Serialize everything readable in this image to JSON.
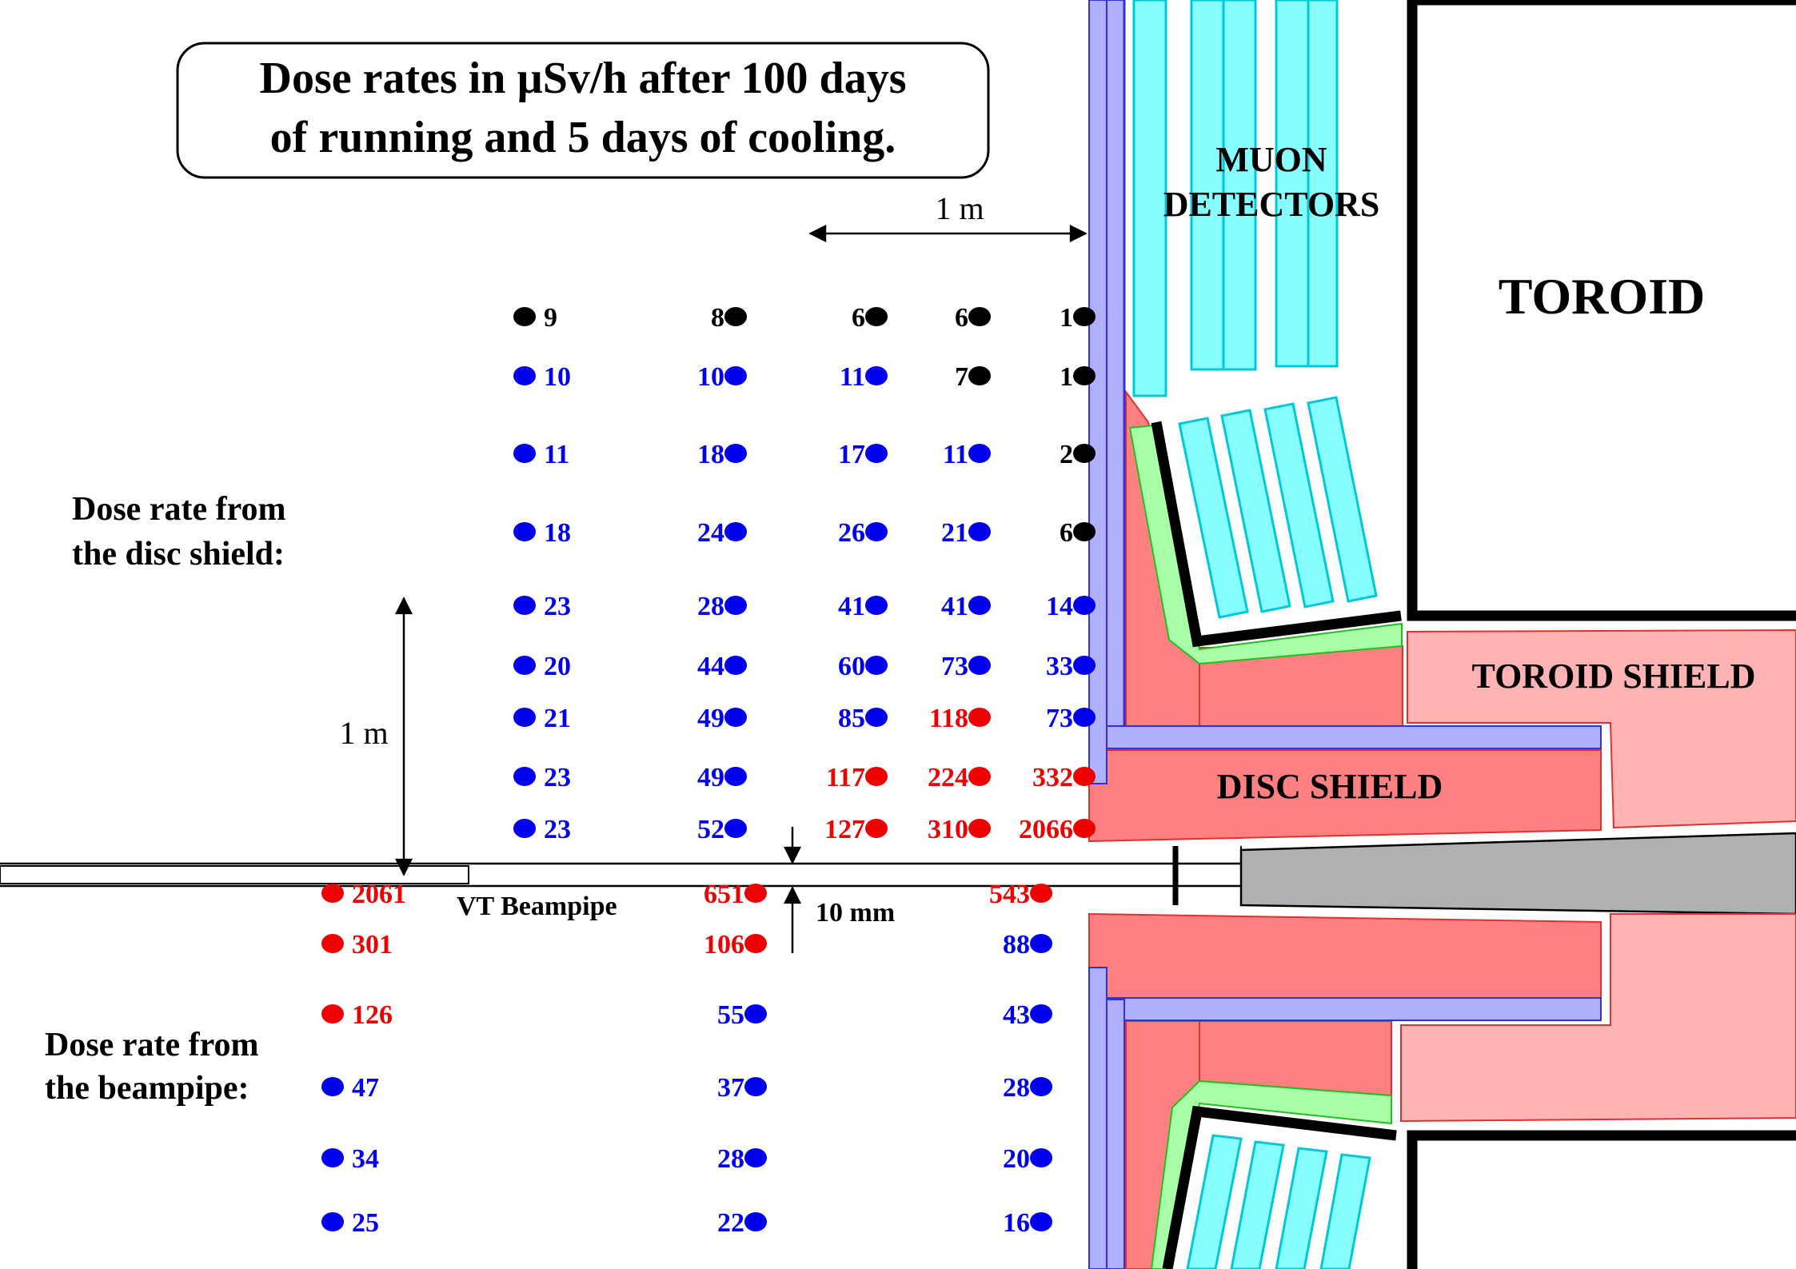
{
  "title_line1": "Dose rates in µSv/h after 100 days",
  "title_line2": "of running and 5 days of cooling.",
  "scale_horizontal": "1 m",
  "scale_vertical": "1 m",
  "gap_label": "10 mm",
  "beampipe_label": "VT Beampipe",
  "disc_section_line1": "Dose rate from",
  "disc_section_line2": "the disc shield:",
  "beam_section_line1": "Dose rate from",
  "beam_section_line2": "the beampipe:",
  "label_muon_line1": "MUON",
  "label_muon_line2": "DETECTORS",
  "label_toroid": "TOROID",
  "label_toroid_shield": "TOROID SHIELD",
  "label_disc_shield": "DISC SHIELD",
  "colors": {
    "low": "#000000",
    "medium": "#0000ee",
    "high": "#ee0000",
    "shield_blue_fill": "#b0b0ff",
    "shield_blue_edge": "#3030e0",
    "muon_fill": "#88ffff",
    "muon_edge": "#00c8d8",
    "disc_red": "#ff8080",
    "toroid_shield": "#ffb3b3",
    "green_layer": "#a8ffa8",
    "cone_gray": "#b0b0b0"
  },
  "disc_points": [
    {
      "value": "9",
      "color": "low"
    },
    {
      "value": "8",
      "color": "low"
    },
    {
      "value": "6",
      "color": "low"
    },
    {
      "value": "6",
      "color": "low"
    },
    {
      "value": "1",
      "color": "low"
    },
    {
      "value": "10",
      "color": "medium"
    },
    {
      "value": "10",
      "color": "medium"
    },
    {
      "value": "11",
      "color": "medium"
    },
    {
      "value": "7",
      "color": "low"
    },
    {
      "value": "1",
      "color": "low"
    },
    {
      "value": "11",
      "color": "medium"
    },
    {
      "value": "18",
      "color": "medium"
    },
    {
      "value": "17",
      "color": "medium"
    },
    {
      "value": "11",
      "color": "medium"
    },
    {
      "value": "2",
      "color": "low"
    },
    {
      "value": "18",
      "color": "medium"
    },
    {
      "value": "24",
      "color": "medium"
    },
    {
      "value": "26",
      "color": "medium"
    },
    {
      "value": "21",
      "color": "medium"
    },
    {
      "value": "6",
      "color": "low"
    },
    {
      "value": "23",
      "color": "medium"
    },
    {
      "value": "28",
      "color": "medium"
    },
    {
      "value": "41",
      "color": "medium"
    },
    {
      "value": "41",
      "color": "medium"
    },
    {
      "value": "14",
      "color": "medium"
    },
    {
      "value": "20",
      "color": "medium"
    },
    {
      "value": "44",
      "color": "medium"
    },
    {
      "value": "60",
      "color": "medium"
    },
    {
      "value": "73",
      "color": "medium"
    },
    {
      "value": "33",
      "color": "medium"
    },
    {
      "value": "21",
      "color": "medium"
    },
    {
      "value": "49",
      "color": "medium"
    },
    {
      "value": "85",
      "color": "medium"
    },
    {
      "value": "118",
      "color": "high"
    },
    {
      "value": "73",
      "color": "medium"
    },
    {
      "value": "23",
      "color": "medium"
    },
    {
      "value": "49",
      "color": "medium"
    },
    {
      "value": "117",
      "color": "high"
    },
    {
      "value": "224",
      "color": "high"
    },
    {
      "value": "332",
      "color": "high"
    },
    {
      "value": "23",
      "color": "medium"
    },
    {
      "value": "52",
      "color": "medium"
    },
    {
      "value": "127",
      "color": "high"
    },
    {
      "value": "310",
      "color": "high"
    },
    {
      "value": "2066",
      "color": "high"
    }
  ],
  "beam_points": [
    {
      "value": "2061",
      "color": "high"
    },
    {
      "value": "651",
      "color": "high"
    },
    {
      "value": "543",
      "color": "high"
    },
    {
      "value": "301",
      "color": "high"
    },
    {
      "value": "106",
      "color": "high"
    },
    {
      "value": "88",
      "color": "medium"
    },
    {
      "value": "126",
      "color": "high"
    },
    {
      "value": "55",
      "color": "medium"
    },
    {
      "value": "43",
      "color": "medium"
    },
    {
      "value": "47",
      "color": "medium"
    },
    {
      "value": "37",
      "color": "medium"
    },
    {
      "value": "28",
      "color": "medium"
    },
    {
      "value": "34",
      "color": "medium"
    },
    {
      "value": "28",
      "color": "medium"
    },
    {
      "value": "20",
      "color": "medium"
    },
    {
      "value": "25",
      "color": "medium"
    },
    {
      "value": "22",
      "color": "medium"
    },
    {
      "value": "16",
      "color": "medium"
    }
  ]
}
